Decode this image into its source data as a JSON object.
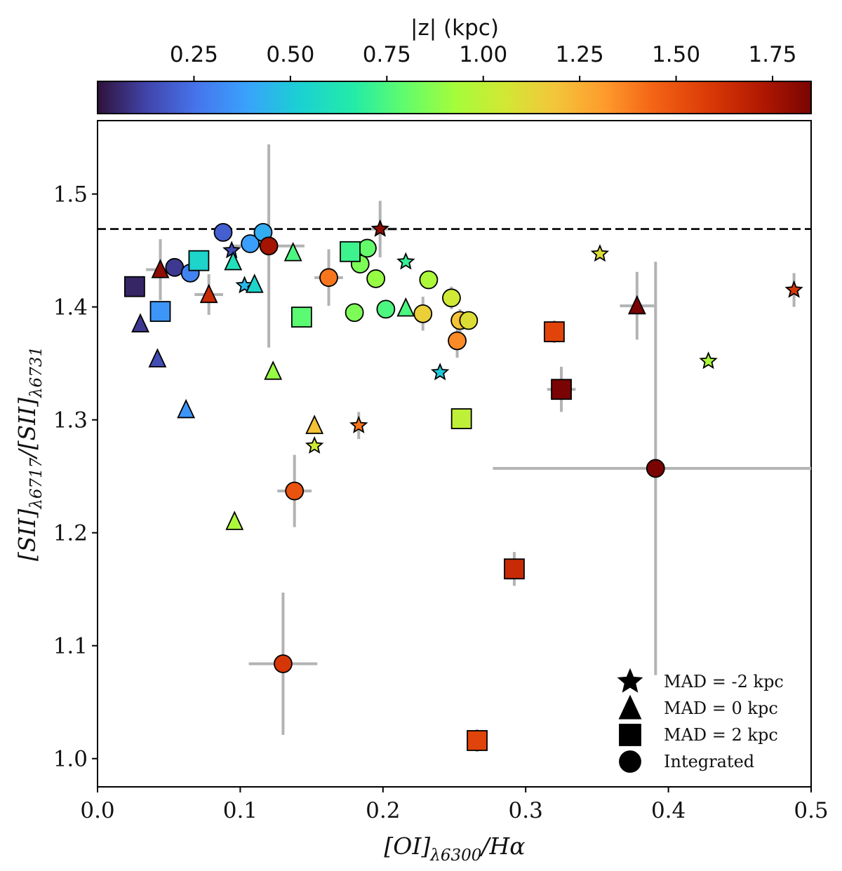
{
  "chart_data": {
    "type": "scatter",
    "xlabel": "[OI]λ6300/Hα",
    "ylabel": "[SII]λ6717/[SII]λ6731",
    "xlim": [
      0.0,
      0.5
    ],
    "ylim": [
      0.975,
      1.565
    ],
    "xticks": [
      "0.0",
      "0.1",
      "0.2",
      "0.3",
      "0.4",
      "0.5"
    ],
    "yticks": [
      "1.0",
      "1.1",
      "1.2",
      "1.3",
      "1.4",
      "1.5"
    ],
    "reference_line": {
      "y": 1.469,
      "style": "dashed"
    },
    "colorbar": {
      "label": "|z| (kpc)",
      "range": [
        0.0,
        1.85
      ],
      "ticks": [
        "0.25",
        "0.50",
        "0.75",
        "1.00",
        "1.25",
        "1.50",
        "1.75"
      ],
      "colormap": "turbo"
    },
    "legend": {
      "position": "bottom-right",
      "entries": [
        {
          "marker": "star",
          "label": "MAD = -2 kpc"
        },
        {
          "marker": "triangle",
          "label": "MAD = 0 kpc"
        },
        {
          "marker": "square",
          "label": "MAD = 2 kpc"
        },
        {
          "marker": "circle",
          "label": "Integrated"
        }
      ]
    },
    "series": [
      {
        "name": "Integrated",
        "marker": "circle",
        "points": [
          {
            "x": 0.054,
            "y": 1.435,
            "z": 0.1
          },
          {
            "x": 0.065,
            "y": 1.43,
            "z": 0.3
          },
          {
            "x": 0.088,
            "y": 1.466,
            "z": 0.2
          },
          {
            "x": 0.107,
            "y": 1.456,
            "z": 0.38
          },
          {
            "x": 0.116,
            "y": 1.466,
            "z": 0.42
          },
          {
            "x": 0.12,
            "y": 1.454,
            "z": 1.75,
            "xerr": 0.025,
            "yerr": 0.09
          },
          {
            "x": 0.162,
            "y": 1.426,
            "z": 1.4,
            "xerr": 0.01,
            "yerr": 0.025
          },
          {
            "x": 0.18,
            "y": 1.395,
            "z": 0.85
          },
          {
            "x": 0.184,
            "y": 1.438,
            "z": 0.85
          },
          {
            "x": 0.189,
            "y": 1.452,
            "z": 0.8
          },
          {
            "x": 0.195,
            "y": 1.425,
            "z": 0.9
          },
          {
            "x": 0.202,
            "y": 1.398,
            "z": 0.75
          },
          {
            "x": 0.232,
            "y": 1.424,
            "z": 0.95
          },
          {
            "x": 0.228,
            "y": 1.394,
            "z": 1.15,
            "yerr": 0.015
          },
          {
            "x": 0.248,
            "y": 1.408,
            "z": 1.05,
            "yerr": 0.01
          },
          {
            "x": 0.254,
            "y": 1.388,
            "z": 1.2,
            "yerr": 0.01
          },
          {
            "x": 0.26,
            "y": 1.388,
            "z": 1.1
          },
          {
            "x": 0.252,
            "y": 1.37,
            "z": 1.35,
            "yerr": 0.015
          },
          {
            "x": 0.138,
            "y": 1.237,
            "z": 1.5,
            "xerr": 0.012,
            "yerr": 0.032
          },
          {
            "x": 0.13,
            "y": 1.084,
            "z": 1.6,
            "xerr": 0.024,
            "yerr": 0.063
          },
          {
            "x": 0.391,
            "y": 1.257,
            "z": 1.85,
            "xerr": 0.114,
            "yerr": 0.183
          }
        ]
      },
      {
        "name": "MAD = -2 kpc",
        "marker": "star",
        "points": [
          {
            "x": 0.094,
            "y": 1.45,
            "z": 0.15
          },
          {
            "x": 0.103,
            "y": 1.419,
            "z": 0.45
          },
          {
            "x": 0.198,
            "y": 1.469,
            "z": 1.8,
            "xerr": 0.012,
            "yerr": 0.025
          },
          {
            "x": 0.216,
            "y": 1.44,
            "z": 0.7
          },
          {
            "x": 0.24,
            "y": 1.342,
            "z": 0.5
          },
          {
            "x": 0.183,
            "y": 1.295,
            "z": 1.4,
            "yerr": 0.012
          },
          {
            "x": 0.152,
            "y": 1.277,
            "z": 1.05
          },
          {
            "x": 0.352,
            "y": 1.447,
            "z": 1.1
          },
          {
            "x": 0.428,
            "y": 1.352,
            "z": 0.95
          },
          {
            "x": 0.488,
            "y": 1.415,
            "z": 1.6,
            "yerr": 0.015
          }
        ]
      },
      {
        "name": "MAD = 0 kpc",
        "marker": "triangle",
        "points": [
          {
            "x": 0.03,
            "y": 1.385,
            "z": 0.1
          },
          {
            "x": 0.042,
            "y": 1.354,
            "z": 0.15
          },
          {
            "x": 0.044,
            "y": 1.433,
            "z": 1.8,
            "xerr": 0.01,
            "yerr": 0.027
          },
          {
            "x": 0.062,
            "y": 1.309,
            "z": 0.35
          },
          {
            "x": 0.078,
            "y": 1.411,
            "z": 1.65,
            "xerr": 0.01,
            "yerr": 0.018
          },
          {
            "x": 0.095,
            "y": 1.44,
            "z": 0.6
          },
          {
            "x": 0.11,
            "y": 1.42,
            "z": 0.55
          },
          {
            "x": 0.137,
            "y": 1.448,
            "z": 0.75
          },
          {
            "x": 0.123,
            "y": 1.343,
            "z": 0.9
          },
          {
            "x": 0.152,
            "y": 1.295,
            "z": 1.2
          },
          {
            "x": 0.096,
            "y": 1.21,
            "z": 0.95
          },
          {
            "x": 0.216,
            "y": 1.399,
            "z": 0.75
          },
          {
            "x": 0.378,
            "y": 1.401,
            "z": 1.85,
            "xerr": 0.012,
            "yerr": 0.03
          }
        ]
      },
      {
        "name": "MAD = 2 kpc",
        "marker": "square",
        "points": [
          {
            "x": 0.026,
            "y": 1.418,
            "z": 0.05
          },
          {
            "x": 0.044,
            "y": 1.396,
            "z": 0.35
          },
          {
            "x": 0.071,
            "y": 1.441,
            "z": 0.55
          },
          {
            "x": 0.143,
            "y": 1.391,
            "z": 0.78
          },
          {
            "x": 0.177,
            "y": 1.449,
            "z": 0.72
          },
          {
            "x": 0.255,
            "y": 1.301,
            "z": 1.0
          },
          {
            "x": 0.32,
            "y": 1.378,
            "z": 1.55,
            "yerr": 0.01
          },
          {
            "x": 0.325,
            "y": 1.327,
            "z": 1.85,
            "xerr": 0.01,
            "yerr": 0.02
          },
          {
            "x": 0.292,
            "y": 1.168,
            "z": 1.65,
            "yerr": 0.015
          },
          {
            "x": 0.266,
            "y": 1.016,
            "z": 1.55,
            "yerr": 0.01
          }
        ]
      }
    ]
  }
}
